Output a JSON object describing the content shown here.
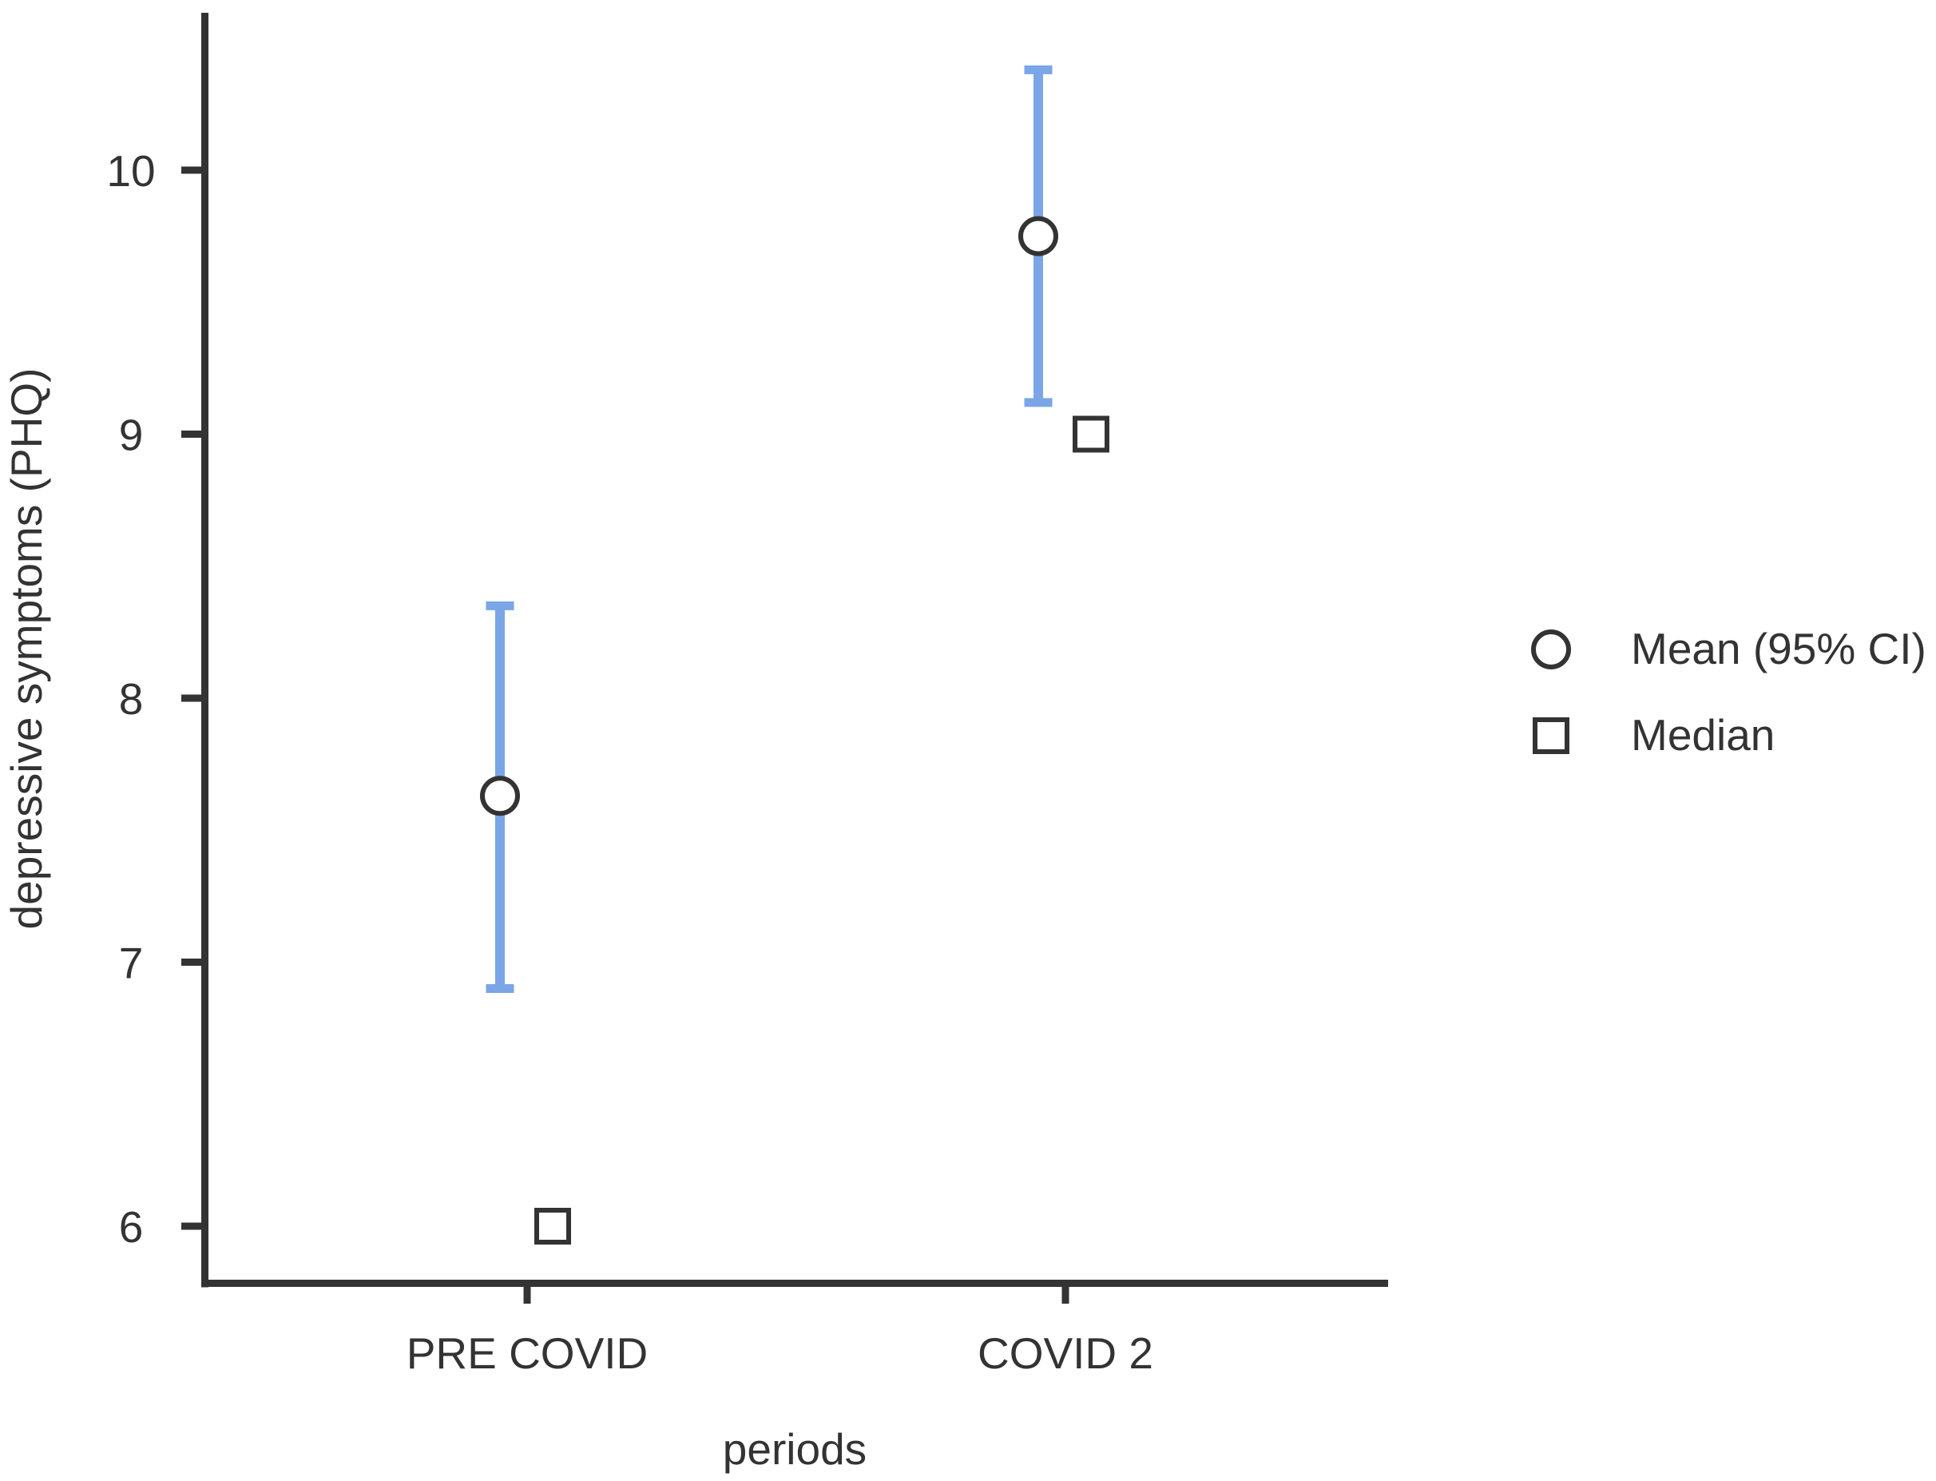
{
  "chart_data": {
    "type": "scatter",
    "title": "",
    "xlabel": "periods",
    "ylabel": "depressive symptoms (PHQ)",
    "categories": [
      "PRE COVID",
      "COVID 2"
    ],
    "y_ticks": [
      6,
      7,
      8,
      9,
      10
    ],
    "ylim": [
      5.8,
      10.6
    ],
    "grid": false,
    "legend_position": "right",
    "series": [
      {
        "name": "Mean (95% CI)",
        "marker": "circle",
        "values": [
          7.63,
          9.75
        ],
        "ci_low": [
          6.9,
          9.12
        ],
        "ci_high": [
          8.35,
          10.38
        ]
      },
      {
        "name": "Median",
        "marker": "square",
        "values": [
          6,
          9
        ]
      }
    ],
    "legend": {
      "entries": [
        {
          "marker": "circle",
          "label": "Mean (95% CI)"
        },
        {
          "marker": "square",
          "label": "Median"
        }
      ]
    },
    "colors": {
      "error_bar": "#7AA6E8",
      "marker_stroke": "#333333",
      "axis": "#333333",
      "text": "#333333",
      "background": "#FFFFFF"
    }
  }
}
